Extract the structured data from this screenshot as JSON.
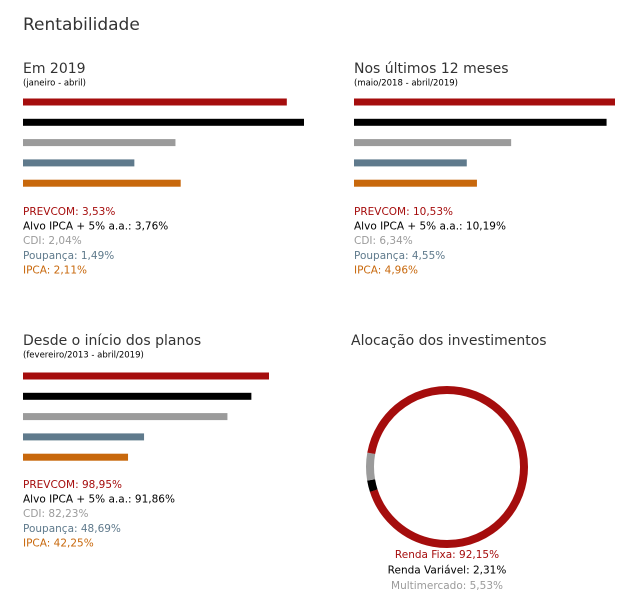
{
  "title": "Rentabilidade",
  "chart_data": [
    {
      "type": "bar",
      "title": "Em 2019",
      "subtitle": "(janeiro - abril)",
      "values": [
        3.53,
        3.76,
        2.04,
        1.49,
        2.11
      ],
      "value_labels": [
        "PREVCOM: 3,53%",
        "Alvo IPCA + 5% a.a.: 3,76%",
        "CDI: 2,04%",
        "Poupança: 1,49%",
        "IPCA: 2,11%"
      ],
      "colors": [
        "#a50d0d",
        "#000000",
        "#9b9b9b",
        "#5f7a8c",
        "#c8680c"
      ]
    },
    {
      "type": "bar",
      "title": "Nos últimos 12 meses",
      "subtitle": "(maio/2018 - abril/2019)",
      "values": [
        10.53,
        10.19,
        6.34,
        4.55,
        4.96
      ],
      "value_labels": [
        "PREVCOM: 10,53%",
        "Alvo IPCA + 5% a.a.: 10,19%",
        "CDI: 6,34%",
        "Poupança: 4,55%",
        "IPCA: 4,96%"
      ],
      "colors": [
        "#a50d0d",
        "#000000",
        "#9b9b9b",
        "#5f7a8c",
        "#c8680c"
      ]
    },
    {
      "type": "bar",
      "title": "Desde o início dos planos",
      "subtitle": "(fevereiro/2013 - abril/2019)",
      "values": [
        98.95,
        91.86,
        82.23,
        48.69,
        42.25
      ],
      "value_labels": [
        "PREVCOM: 98,95%",
        "Alvo IPCA + 5% a.a.: 91,86%",
        "CDI: 82,23%",
        "Poupança: 48,69%",
        "IPCA: 42,25%"
      ],
      "colors": [
        "#a50d0d",
        "#000000",
        "#9b9b9b",
        "#5f7a8c",
        "#c8680c"
      ]
    },
    {
      "type": "donut",
      "title": "Alocação dos investimentos",
      "values": [
        92.15,
        2.31,
        5.53
      ],
      "value_labels": [
        "Renda Fixa: 92,15%",
        "Renda Variável: 2,31%",
        "Multimercado: 5,53%"
      ],
      "colors": [
        "#a50d0d",
        "#000000",
        "#9b9b9b"
      ]
    }
  ]
}
